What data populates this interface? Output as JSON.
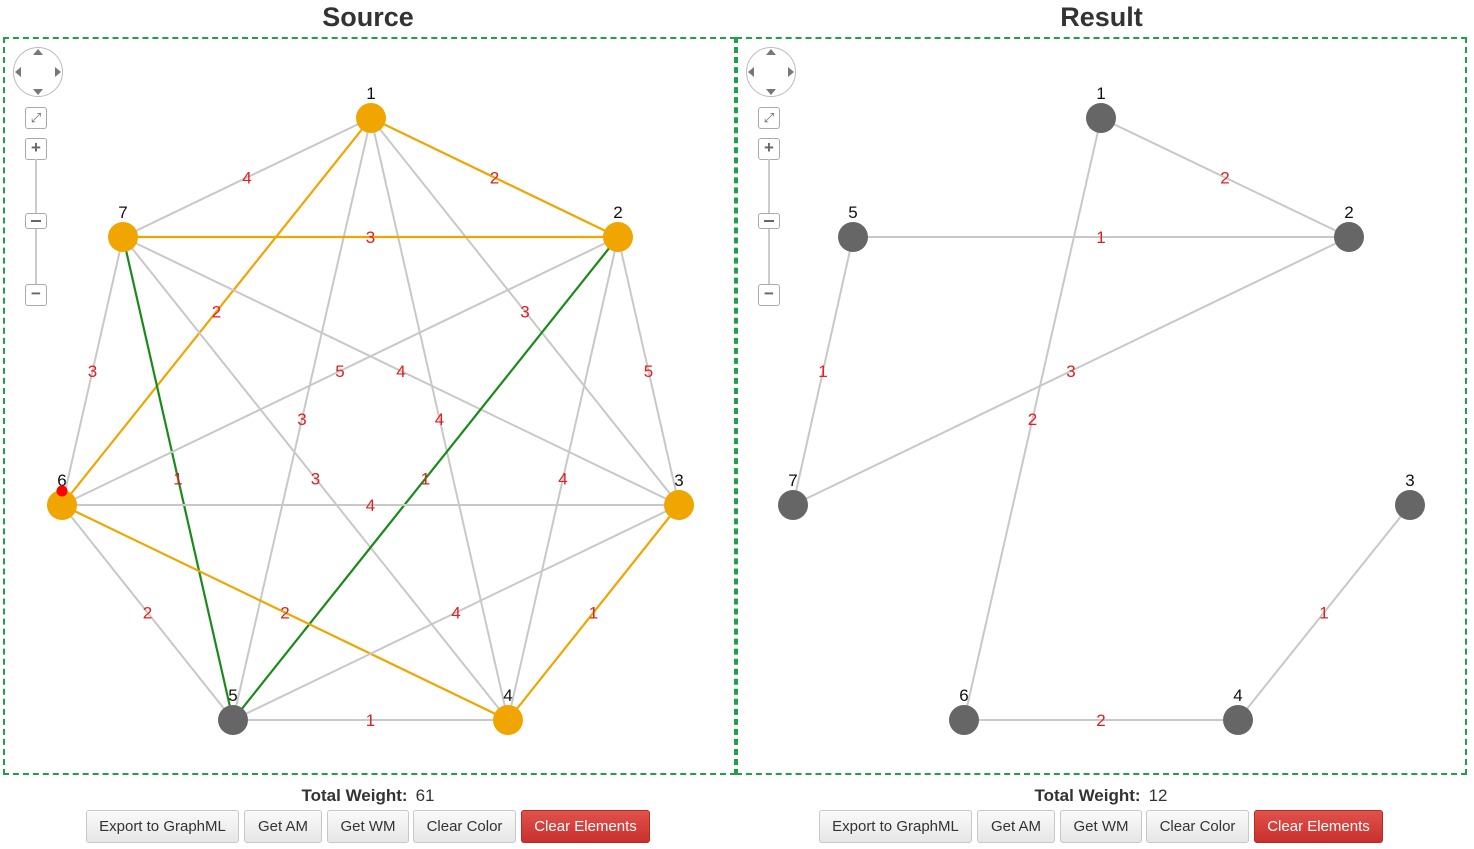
{
  "source": {
    "title": "Source",
    "total_weight_label": "Total Weight:",
    "total_weight_value": "61",
    "buttons": {
      "export": "Export to GraphML",
      "get_am": "Get AM",
      "get_wm": "Get WM",
      "clear_color": "Clear Color",
      "clear_elements": "Clear Elements"
    },
    "graph": {
      "nodes": [
        {
          "id": "1",
          "color": "#f0a500"
        },
        {
          "id": "2",
          "color": "#f0a500"
        },
        {
          "id": "3",
          "color": "#f0a500"
        },
        {
          "id": "4",
          "color": "#f0a500"
        },
        {
          "id": "5",
          "color": "#666666"
        },
        {
          "id": "6",
          "color": "#f0a500"
        },
        {
          "id": "7",
          "color": "#f0a500"
        }
      ],
      "edges": [
        {
          "from": "1",
          "to": "2",
          "weight": "2",
          "color": "#f0a500"
        },
        {
          "from": "1",
          "to": "7",
          "weight": "4",
          "color": "#c8c8c8"
        },
        {
          "from": "1",
          "to": "6",
          "weight": "2",
          "color": "#f0a500"
        },
        {
          "from": "1",
          "to": "3",
          "weight": "3",
          "color": "#c8c8c8"
        },
        {
          "from": "1",
          "to": "5",
          "weight": "3",
          "color": "#c8c8c8"
        },
        {
          "from": "1",
          "to": "4",
          "weight": "4",
          "color": "#c8c8c8"
        },
        {
          "from": "7",
          "to": "2",
          "weight": "3",
          "color": "#f0a500"
        },
        {
          "from": "7",
          "to": "6",
          "weight": "3",
          "color": "#c8c8c8"
        },
        {
          "from": "7",
          "to": "3",
          "weight": "4",
          "color": "#c8c8c8"
        },
        {
          "from": "7",
          "to": "4",
          "weight": "3",
          "color": "#c8c8c8"
        },
        {
          "from": "7",
          "to": "5",
          "weight": "1",
          "color": "#1a8a1a"
        },
        {
          "from": "2",
          "to": "3",
          "weight": "5",
          "color": "#c8c8c8"
        },
        {
          "from": "2",
          "to": "6",
          "weight": "5",
          "color": "#c8c8c8"
        },
        {
          "from": "2",
          "to": "5",
          "weight": "1",
          "color": "#1a8a1a"
        },
        {
          "from": "2",
          "to": "4",
          "weight": "4",
          "color": "#c8c8c8"
        },
        {
          "from": "6",
          "to": "3",
          "weight": "4",
          "color": "#c8c8c8"
        },
        {
          "from": "6",
          "to": "5",
          "weight": "2",
          "color": "#c8c8c8"
        },
        {
          "from": "6",
          "to": "4",
          "weight": "2",
          "color": "#f0a500"
        },
        {
          "from": "3",
          "to": "5",
          "weight": "4",
          "color": "#c8c8c8"
        },
        {
          "from": "3",
          "to": "4",
          "weight": "1",
          "color": "#f0a500"
        },
        {
          "from": "5",
          "to": "4",
          "weight": "1",
          "color": "#c8c8c8"
        }
      ]
    }
  },
  "result": {
    "title": "Result",
    "total_weight_label": "Total Weight:",
    "total_weight_value": "12",
    "buttons": {
      "export": "Export to GraphML",
      "get_am": "Get AM",
      "get_wm": "Get WM",
      "clear_color": "Clear Color",
      "clear_elements": "Clear Elements"
    },
    "graph": {
      "nodes": [
        {
          "id": "1",
          "color": "#666666"
        },
        {
          "id": "2",
          "color": "#666666"
        },
        {
          "id": "3",
          "color": "#666666"
        },
        {
          "id": "4",
          "color": "#666666"
        },
        {
          "id": "5",
          "color": "#666666"
        },
        {
          "id": "6",
          "color": "#666666"
        },
        {
          "id": "7",
          "color": "#666666"
        }
      ],
      "edges": [
        {
          "from": "1",
          "to": "2",
          "weight": "2",
          "color": "#c8c8c8"
        },
        {
          "from": "1",
          "to": "6",
          "weight": "2",
          "color": "#c8c8c8"
        },
        {
          "from": "5",
          "to": "2",
          "weight": "1",
          "color": "#c8c8c8"
        },
        {
          "from": "5",
          "to": "7",
          "weight": "1",
          "color": "#c8c8c8"
        },
        {
          "from": "7",
          "to": "2",
          "weight": "3",
          "color": "#c8c8c8"
        },
        {
          "from": "6",
          "to": "4",
          "weight": "2",
          "color": "#c8c8c8"
        },
        {
          "from": "4",
          "to": "3",
          "weight": "1",
          "color": "#c8c8c8"
        }
      ]
    }
  },
  "colors": {
    "edge_label": "#e02020",
    "border": "#1fa14a",
    "danger_button": "#d9534f"
  }
}
